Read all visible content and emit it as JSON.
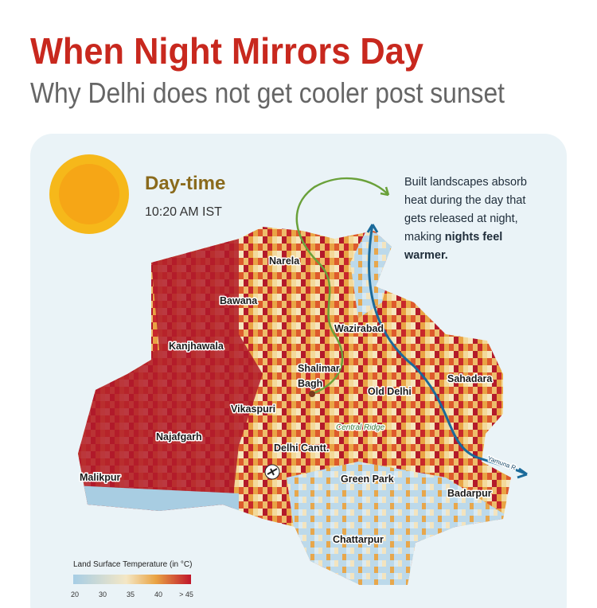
{
  "header": {
    "title": "When Night Mirrors Day",
    "subtitle": "Why Delhi does not get cooler post sunset"
  },
  "panel": {
    "period": "Day-time",
    "time": "10:20 AM IST"
  },
  "annotation": {
    "lines": [
      "Built landscapes absorb",
      "heat during the day that",
      "gets released at night,",
      "making "
    ],
    "emphasis": [
      "nights feel",
      "warmer."
    ]
  },
  "places": [
    "Narela",
    "Bawana",
    "Wazirabad",
    "Kanjhawala",
    "Shalimar",
    "Bagh",
    "Old Delhi",
    "Sahadara",
    "Vikaspuri",
    "Central Ridge",
    "Najafgarh",
    "Delhi Cantt.",
    "Yamuna R",
    "Malikpur",
    "Green Park",
    "Badarpur",
    "Chattarpur"
  ],
  "legend": {
    "title": "Land Surface Temperature (in °C)",
    "ticks": [
      "20",
      "30",
      "35",
      "40",
      "> 45"
    ]
  }
}
